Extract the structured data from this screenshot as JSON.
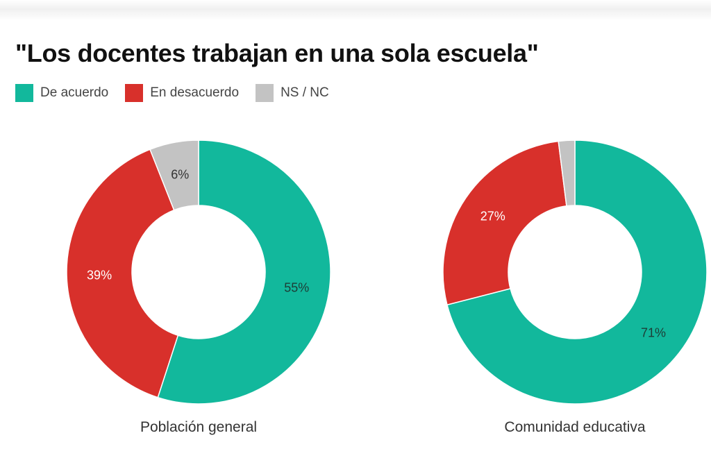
{
  "title": "\"Los docentes trabajan en una sola escuela\"",
  "legend": [
    {
      "label": "De acuerdo",
      "color": "#12b89c"
    },
    {
      "label": "En desacuerdo",
      "color": "#d8302b"
    },
    {
      "label": "NS / NC",
      "color": "#c3c3c3"
    }
  ],
  "chart_data": [
    {
      "type": "pie",
      "variant": "donut",
      "title": "Población general",
      "categories": [
        "De acuerdo",
        "En desacuerdo",
        "NS / NC"
      ],
      "values": [
        55,
        39,
        6
      ],
      "labels": [
        "55%",
        "39%",
        "6%"
      ],
      "label_colors": [
        "#1d3d36",
        "#ffffff",
        "#333333"
      ],
      "colors": [
        "#12b89c",
        "#d8302b",
        "#c3c3c3"
      ],
      "unit": "%",
      "legend": "top-left"
    },
    {
      "type": "pie",
      "variant": "donut",
      "title": "Comunidad educativa",
      "categories": [
        "De acuerdo",
        "En desacuerdo",
        "NS / NC"
      ],
      "values": [
        71,
        27,
        2
      ],
      "labels": [
        "71%",
        "27%",
        ""
      ],
      "label_colors": [
        "#1d3d36",
        "#ffffff",
        "#333333"
      ],
      "colors": [
        "#12b89c",
        "#d8302b",
        "#c3c3c3"
      ],
      "unit": "%",
      "legend": "top-left"
    }
  ]
}
